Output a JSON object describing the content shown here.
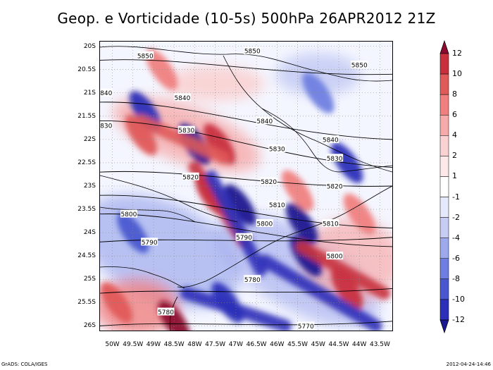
{
  "title": "Geop. e Vorticidade (10-5s) 500hPa 26APR2012 21Z",
  "y_ticks": [
    "20S",
    "20.5S",
    "21S",
    "21.5S",
    "22S",
    "22.5S",
    "23S",
    "23.5S",
    "24S",
    "24.5S",
    "25S",
    "25.5S",
    "26S"
  ],
  "x_ticks": [
    "50W",
    "49.5W",
    "49W",
    "48.5W",
    "48W",
    "47.5W",
    "47W",
    "46.5W",
    "46W",
    "45.5W",
    "45W",
    "44.5W",
    "44W",
    "43.5W"
  ],
  "colorbar": {
    "labels": [
      "12",
      "10",
      "8",
      "6",
      "4",
      "2",
      "1",
      "-1",
      "-2",
      "-4",
      "-6",
      "-8",
      "-10",
      "-12"
    ],
    "colors": [
      "#8b0a2e",
      "#c8303e",
      "#e05a5a",
      "#f08080",
      "#f6aaaa",
      "#fad2d2",
      "#fde9e9",
      "#ffffff",
      "#e6e9fb",
      "#c6cdf4",
      "#9ea9ec",
      "#6f7ee0",
      "#4a58d0",
      "#2c2fb8",
      "#1a1890"
    ]
  },
  "contours": [
    {
      "label": "5850",
      "lat": [
        -20.3,
        -20.6
      ]
    },
    {
      "label": "5840",
      "lat": [
        -21.2,
        -22.0
      ]
    },
    {
      "label": "5830",
      "lat": [
        -21.6,
        -22.6
      ]
    },
    {
      "label": "5820",
      "lat": [
        -22.7,
        -23.0
      ]
    },
    {
      "label": "5810",
      "lat": [
        -23.2,
        -23.9
      ]
    },
    {
      "label": "5800",
      "lat": [
        -23.6,
        -24.3
      ]
    },
    {
      "label": "5790",
      "lat": [
        -24.2,
        -24.1
      ]
    },
    {
      "label": "5780",
      "lat": [
        -25.3,
        -25.2
      ]
    },
    {
      "label": "5770",
      "lat": [
        -26.0,
        -25.9
      ]
    }
  ],
  "contour_labels": [
    "5850",
    "5850",
    "5850",
    "5840",
    "5840",
    "5840",
    "5840",
    "5830",
    "5830",
    "5830",
    "5830",
    "5820",
    "5820",
    "5820",
    "5810",
    "5810",
    "5800",
    "5800",
    "5800",
    "5790",
    "5790",
    "5780",
    "5780",
    "5770"
  ],
  "vorticity_features": [
    {
      "sign": "pos",
      "lon": -48.8,
      "lat": -20.5,
      "value": 6
    },
    {
      "sign": "pos",
      "lon": -49.3,
      "lat": -21.9,
      "value": 8
    },
    {
      "sign": "pos",
      "lon": -47.4,
      "lat": -22.1,
      "value": 10
    },
    {
      "sign": "pos",
      "lon": -47.6,
      "lat": -23.2,
      "value": 10
    },
    {
      "sign": "pos",
      "lon": -45.5,
      "lat": -23.1,
      "value": 6
    },
    {
      "sign": "pos",
      "lon": -44.0,
      "lat": -23.6,
      "value": 6
    },
    {
      "sign": "pos",
      "lon": -49.9,
      "lat": -25.5,
      "value": 8
    },
    {
      "sign": "pos",
      "lon": -48.5,
      "lat": -25.9,
      "value": 12
    },
    {
      "sign": "pos",
      "lon": -44.3,
      "lat": -25.2,
      "value": 10
    },
    {
      "sign": "neg",
      "lon": -49.2,
      "lat": -21.4,
      "value": -10
    },
    {
      "sign": "neg",
      "lon": -48.0,
      "lat": -22.1,
      "value": -12
    },
    {
      "sign": "neg",
      "lon": -46.9,
      "lat": -23.4,
      "value": -12
    },
    {
      "sign": "neg",
      "lon": -45.4,
      "lat": -23.8,
      "value": -12
    },
    {
      "sign": "neg",
      "lon": -47.2,
      "lat": -25.5,
      "value": -10
    },
    {
      "sign": "neg",
      "lon": -45.3,
      "lat": -24.5,
      "value": -12
    },
    {
      "sign": "neg",
      "lon": -44.3,
      "lat": -22.5,
      "value": -10
    },
    {
      "sign": "neg",
      "lon": -49.5,
      "lat": -24.0,
      "value": -8
    },
    {
      "sign": "neg",
      "lon": -45.0,
      "lat": -21.0,
      "value": -6
    }
  ],
  "footer": {
    "left": "GrADS: COLA/IGES",
    "right": "2012-04-24-14:46"
  }
}
